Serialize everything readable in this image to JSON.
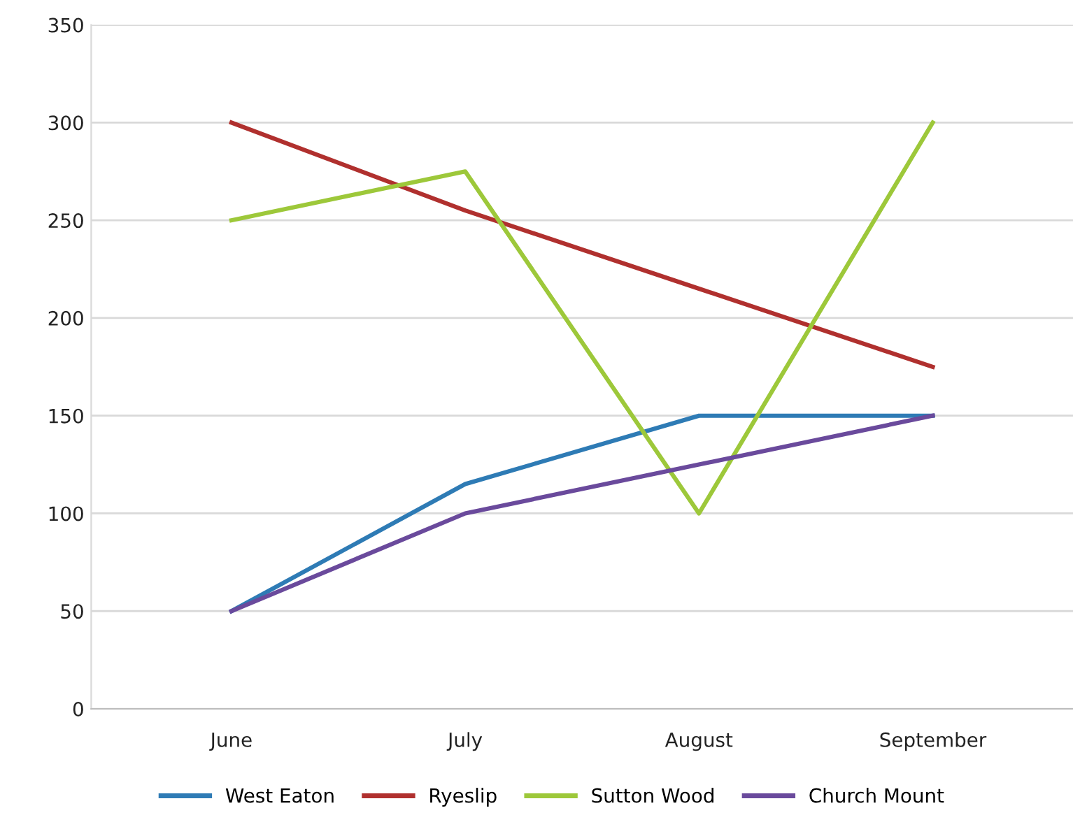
{
  "chart_data": {
    "type": "line",
    "categories": [
      "June",
      "July",
      "August",
      "September"
    ],
    "series": [
      {
        "name": "West Eaton",
        "color": "#2e7bb5",
        "values": [
          50,
          115,
          150,
          150
        ]
      },
      {
        "name": "Ryeslip",
        "color": "#b0302e",
        "values": [
          300,
          255,
          215,
          175
        ]
      },
      {
        "name": "Sutton Wood",
        "color": "#9dc83a",
        "values": [
          250,
          275,
          100,
          300
        ]
      },
      {
        "name": "Church Mount",
        "color": "#6a4a9c",
        "values": [
          50,
          100,
          125,
          150
        ]
      }
    ],
    "ylim": [
      0,
      350
    ],
    "yticks": [
      0,
      50,
      100,
      150,
      200,
      250,
      300,
      350
    ],
    "grid": "y",
    "legend": "bottom",
    "marker": "none",
    "line_style": "solid"
  }
}
